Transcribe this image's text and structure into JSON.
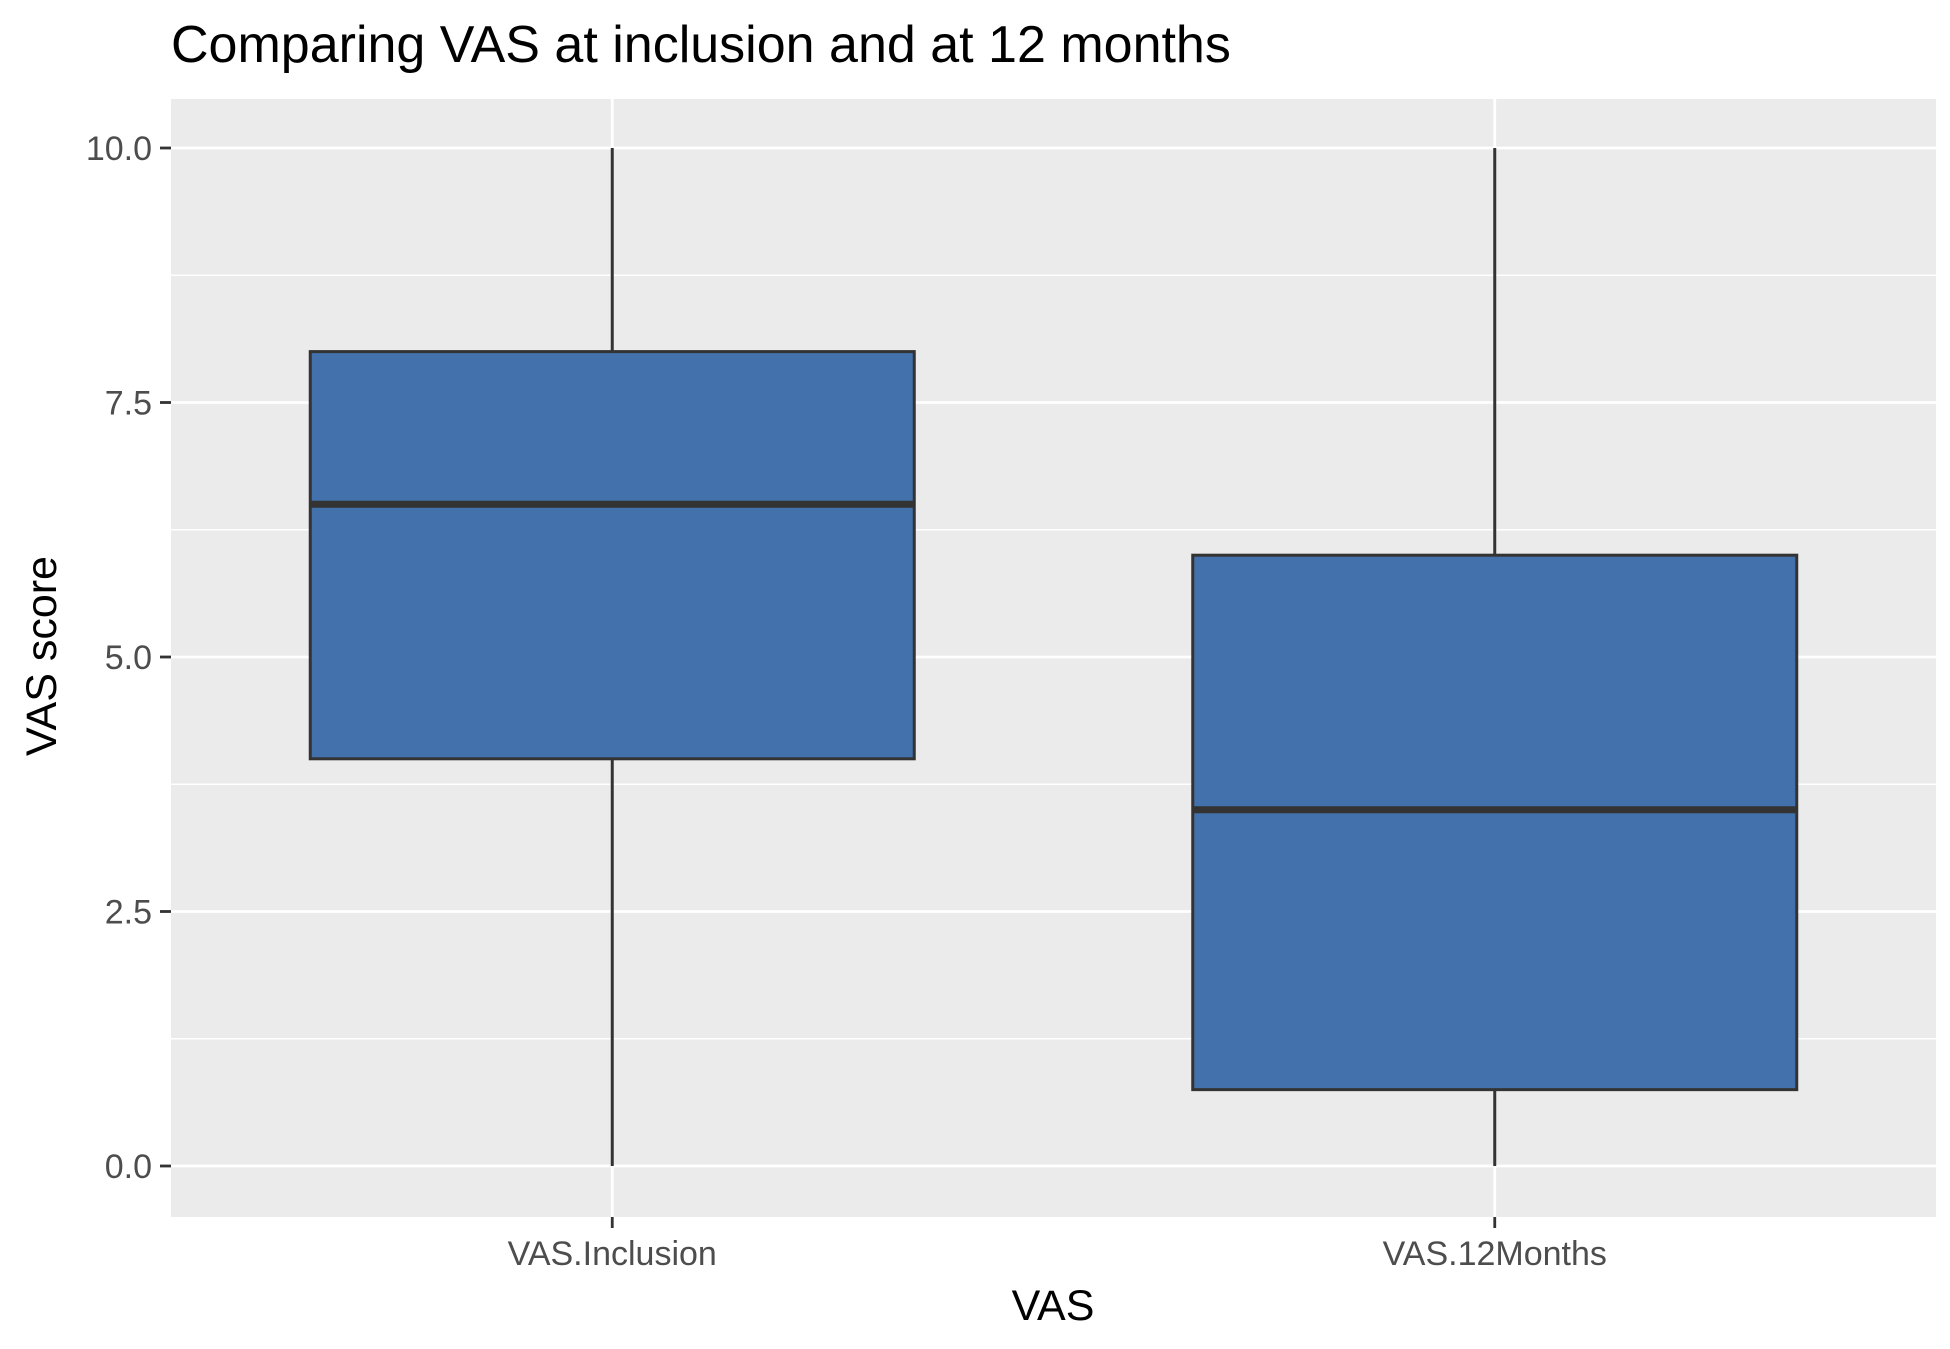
{
  "chart_data": {
    "type": "boxplot",
    "title": "Comparing VAS at inclusion and at 12 months",
    "xlabel": "VAS",
    "ylabel": "VAS score",
    "categories": [
      "VAS.Inclusion",
      "VAS.12Months"
    ],
    "boxes": [
      {
        "category": "VAS.Inclusion",
        "min": 0.0,
        "q1": 4.0,
        "median": 6.5,
        "q3": 8.0,
        "max": 10.0
      },
      {
        "category": "VAS.12Months",
        "min": 0.0,
        "q1": 0.75,
        "median": 3.5,
        "q3": 6.0,
        "max": 10.0
      }
    ],
    "yticks": [
      0.0,
      2.5,
      5.0,
      7.5,
      10.0
    ],
    "ytick_labels": [
      "0.0",
      "2.5",
      "5.0",
      "7.5",
      "10.0"
    ],
    "ylim": [
      -0.5,
      10.5
    ],
    "grid": true,
    "legend": "none",
    "colors": {
      "box_fill": "#4371ab",
      "box_stroke": "#333333",
      "panel_background": "#ebebeb",
      "grid": "#ffffff"
    }
  }
}
